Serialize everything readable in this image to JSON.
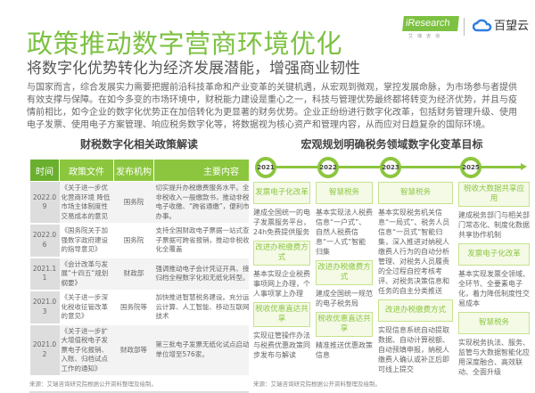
{
  "header": {
    "title": "政策推动数字营商环境优化",
    "subtitle": "将数字化优势转化为经济发展潜能，增强商业韧性",
    "logos": {
      "iresearch": "iResearch",
      "iresearch_sub": "艾瑞咨询",
      "baiwang": "百望云"
    }
  },
  "intro": "与国家而言，综合发展实力需要把握前沿科技革命和产业变革的关键机遇，从宏观到微观，掌控发展命脉，为市场参与者提供有效支撑与保障。在如今多变的市场环境中，财税能力建设是重心之一，科技与管理优势最终都将转变为经济优势，并且与疫情前相比，如今企业的数字化优势正在加倍转化为更显著的财务优势。企业正纷纷进行数字化改革，包括财务管理升级、使用电子发票、使用电子方案管理、响应税务数字化等，将数据视为核心资产和管理内容，从而应对日趋复杂的国际环境。",
  "policy": {
    "title": "财税数字化相关政策解读",
    "headers": [
      "时间",
      "政策文件",
      "发布机构",
      "主要内容"
    ],
    "rows": [
      {
        "date": "2022.09",
        "doc": "《关于进一步优化营商环境 降低市场主体制度性交易成本的意见",
        "org": "国务院",
        "content": "切实提升办税缴费服务水平。全面推行电子非税收入一般缴款书，推动非税收入全领域电子收缴、“跨省通缴”，便利市场主体缴费办事。"
      },
      {
        "date": "2022.06",
        "doc": "《国务院关于加强数字政府建设的指导意见》",
        "org": "国务院",
        "content": "支持全国财政电子票据一站式查验、财政电子票据可跨省报销，推动非税收入收缴电子化全覆盖"
      },
      {
        "date": "2021.11",
        "doc": "《会计改革与发展“十四五“规划纲要》",
        "org": "财政部",
        "content": "强调推动电子会计凭证开具、接收、入账和归档全程数字化和无纸化转型。"
      },
      {
        "date": "2021.03",
        "doc": "《关于进一步深化税收征管改革的意见》",
        "org": "国务院等",
        "content": "加快推进智慧税务建设。充分运用大数据、云计算、人工智能、移动互联网等现代信息技术"
      },
      {
        "date": "2021.02",
        "doc": "《关于进一步扩大增值税电子发票电子化报销、入账、归档试点工作的通知》",
        "org": "财政部等",
        "content": "第三批电子发票无纸化试点启动，试点参与单位增至576家。"
      }
    ],
    "source": "来源：艾瑞咨询研究院根据公开资料整理及绘制。"
  },
  "goals": {
    "title": "宏观规划明确税务领域数字化变革目标",
    "years": [
      "2021",
      "2022",
      "2023",
      "2025"
    ],
    "columns": [
      {
        "items": [
          {
            "box": "发票电子化改革",
            "text": "建成全国统一的电子发票服务平台，24h免费提供服务"
          },
          {
            "box": "改进办税缴费方式",
            "text": "基本实现企业税费事项网上办理，个人事项掌上办理"
          },
          {
            "box": "税收优惠直达共享",
            "text": "实现征管操作办法与税费优惠政策同步发布与解读"
          }
        ]
      },
      {
        "items": [
          {
            "box": "智慧税务",
            "text": "基本实现法人税费信息“一户式”、自然人税费信息“一人式”智能归集"
          },
          {
            "box": "改进办税缴费方式",
            "text": "建成全国统一规范的电子税务局"
          },
          {
            "box": "税收优惠直达共享",
            "text": "精准推送优惠政策信息"
          }
        ]
      },
      {
        "items": [
          {
            "box": "智慧税务",
            "text": "基本实现税务机关信息“一局式”、税务人员信息“一员式”智能归集，深入推进对纳税人缴费人行为的自动分析管理、对税务人员履责的全过程自控考核考评、对税务决策信息和任务的自主分类推送"
          },
          {
            "box": "改进办税缴费方式",
            "text": "实现信息系统自动提取数据、自动计算税额、自动预填申报，纳税人缴费人确认或补正后即可线上提交"
          }
        ]
      },
      {
        "items": [
          {
            "box": "税收大数据共享应用",
            "text": "建成税务部门与相关部门常态化、制度化数据共享协作机制"
          },
          {
            "box": "发票电子化改革",
            "text": "基本实现发票全领域、全环节、全要素电子化，着力降低制度性交易成本"
          },
          {
            "box": "智慧税务",
            "text": "实现税务执法、服务、监管与大数据智能化应用深度融合、高效联动、全面升级"
          }
        ]
      }
    ],
    "source": "来源：艾瑞咨询研究院根据公开资料整理及绘制。"
  },
  "colors": {
    "accent": "#7dc142",
    "header_dark": "#6ab02e",
    "box_border": "#c6e38d"
  }
}
